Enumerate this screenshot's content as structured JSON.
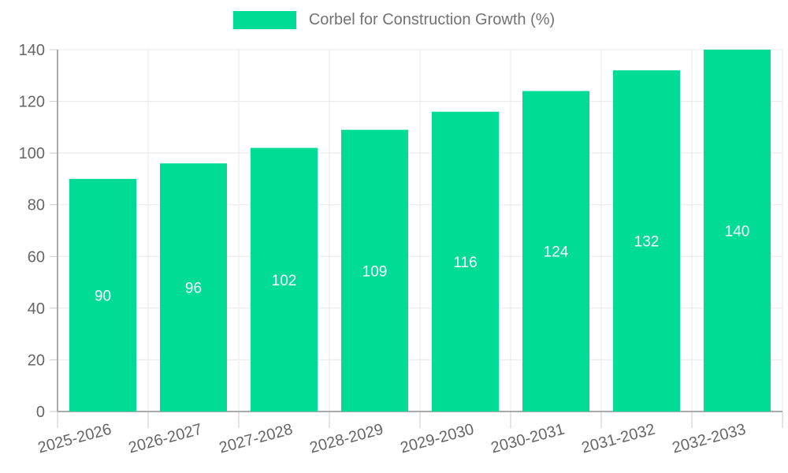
{
  "legend": {
    "label": "Corbel for Construction Growth (%)"
  },
  "chart_data": {
    "type": "bar",
    "title": "",
    "categories": [
      "2025-2026",
      "2026-2027",
      "2027-2028",
      "2028-2029",
      "2029-2030",
      "2030-2031",
      "2031-2032",
      "2032-2033"
    ],
    "series": [
      {
        "name": "Corbel for Construction Growth (%)",
        "values": [
          90,
          96,
          102,
          109,
          116,
          124,
          132,
          140
        ]
      }
    ],
    "ylim": [
      0,
      140
    ],
    "yticks": [
      0,
      20,
      40,
      60,
      80,
      100,
      120,
      140
    ],
    "grid": true,
    "legend_position": "top-center",
    "value_labels": "inside-center",
    "x_label_rotation_deg": -15,
    "colors": {
      "bar": "#00DC96",
      "grid": "#e8e8e8",
      "axis_line": "#aaaaaa",
      "tick": "#c9c9c9",
      "axis_text": "#666666",
      "value_text": "#ffffff",
      "legend_text": "#737373"
    }
  }
}
